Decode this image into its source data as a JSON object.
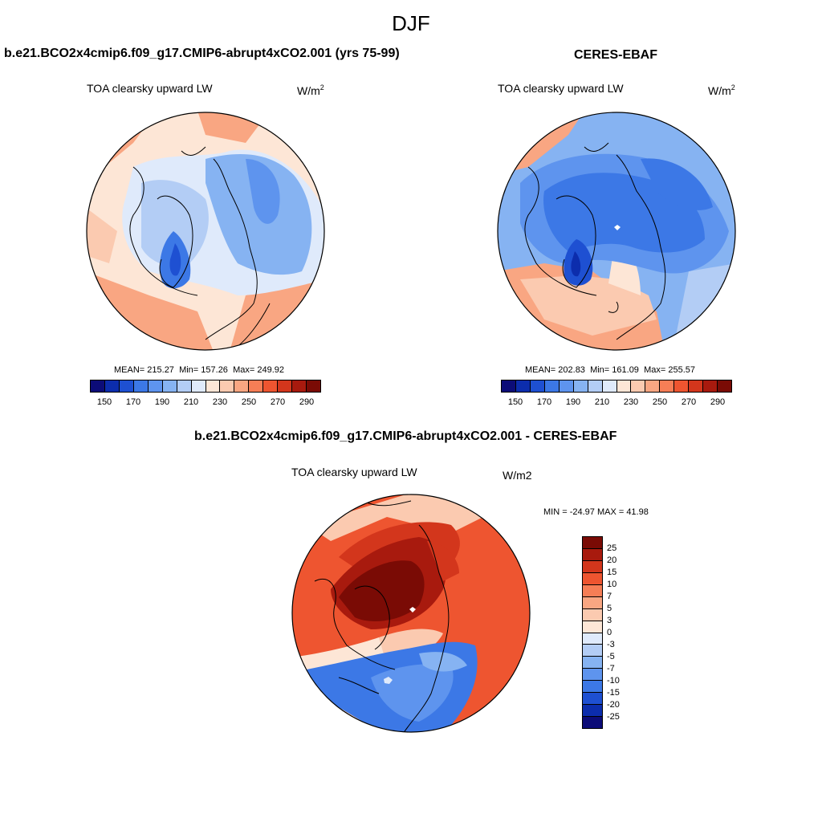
{
  "figure_title": "DJF",
  "panels": [
    {
      "title": "b.e21.BCO2x4cmip6.f09_g17.CMIP6-abrupt4xCO2.001 (yrs 75-99)",
      "variable": "TOA clearsky upward LW",
      "units_base": "W/m",
      "units_exp": "2",
      "stats": {
        "mean_label": "MEAN=",
        "mean": "215.27",
        "min_label": "Min=",
        "min": "157.26",
        "max_label": "Max=",
        "max": "249.92"
      }
    },
    {
      "title": "CERES-EBAF",
      "variable": "TOA clearsky upward LW",
      "units_base": "W/m",
      "units_exp": "2",
      "stats": {
        "mean_label": "MEAN=",
        "mean": "202.83",
        "min_label": "Min=",
        "min": "161.09",
        "max_label": "Max=",
        "max": "255.57"
      }
    },
    {
      "title": "b.e21.BCO2x4cmip6.f09_g17.CMIP6-abrupt4xCO2.001 - CERES-EBAF",
      "variable": "TOA clearsky upward LW",
      "units": "W/m2",
      "stats_text": "MIN = -24.97 MAX =  41.98"
    }
  ],
  "colorbar_abs": {
    "colors": [
      "#0c0c78",
      "#0c2dad",
      "#1e50d2",
      "#3c78e6",
      "#5e94ee",
      "#86b3f2",
      "#b3cdf5",
      "#dfeafb",
      "#fde6d6",
      "#fbcab0",
      "#f9a682",
      "#f67e56",
      "#ee5530",
      "#d3361c",
      "#a81a0e",
      "#7a0b05"
    ],
    "ticks": [
      "150",
      "170",
      "190",
      "210",
      "230",
      "250",
      "270",
      "290"
    ]
  },
  "colorbar_diff": {
    "colors": [
      "#7a0b05",
      "#a81a0e",
      "#d3361c",
      "#ee5530",
      "#f67e56",
      "#f9a682",
      "#fbcab0",
      "#fde6d6",
      "#dfeafb",
      "#b3cdf5",
      "#86b3f2",
      "#5e94ee",
      "#3c78e6",
      "#1e50d2",
      "#0c2dad",
      "#0c0c78"
    ],
    "ticks": [
      "25",
      "20",
      "15",
      "10",
      "7",
      "5",
      "3",
      "0",
      "-3",
      "-5",
      "-7",
      "-10",
      "-15",
      "-20",
      "-25"
    ]
  },
  "chart_data": [
    {
      "type": "heatmap",
      "title": "b.e21.BCO2x4cmip6.f09_g17.CMIP6-abrupt4xCO2.001 (yrs 75-99)",
      "variable": "TOA clearsky upward LW",
      "units": "W/m2",
      "projection": "polar stereographic, north pole",
      "color_levels": [
        150,
        160,
        170,
        180,
        190,
        200,
        210,
        220,
        230,
        240,
        250,
        260,
        270,
        280,
        290
      ],
      "mean": 215.27,
      "min": 157.26,
      "max": 249.92
    },
    {
      "type": "heatmap",
      "title": "CERES-EBAF",
      "variable": "TOA clearsky upward LW",
      "units": "W/m2",
      "projection": "polar stereographic, north pole",
      "color_levels": [
        150,
        160,
        170,
        180,
        190,
        200,
        210,
        220,
        230,
        240,
        250,
        260,
        270,
        280,
        290
      ],
      "mean": 202.83,
      "min": 161.09,
      "max": 255.57
    },
    {
      "type": "heatmap",
      "title": "b.e21.BCO2x4cmip6.f09_g17.CMIP6-abrupt4xCO2.001 - CERES-EBAF",
      "variable": "TOA clearsky upward LW",
      "units": "W/m2",
      "projection": "polar stereographic, north pole",
      "color_levels": [
        -25,
        -20,
        -15,
        -10,
        -7,
        -5,
        -3,
        0,
        3,
        5,
        7,
        10,
        15,
        20,
        25
      ],
      "min": -24.97,
      "max": 41.98
    }
  ]
}
